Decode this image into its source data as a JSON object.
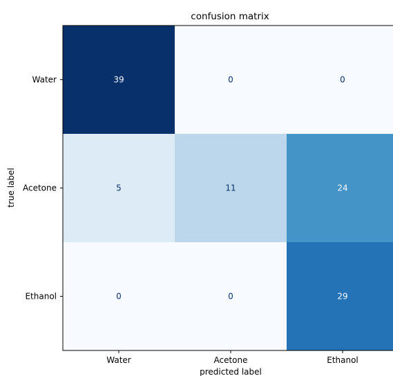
{
  "chart_data": {
    "type": "heatmap",
    "title": "confusion matrix",
    "xlabel": "predicted label",
    "ylabel": "true label",
    "x_categories": [
      "Water",
      "Acetone",
      "Ethanol"
    ],
    "y_categories": [
      "Water",
      "Acetone",
      "Ethanol"
    ],
    "values": [
      [
        39,
        0,
        0
      ],
      [
        5,
        11,
        24
      ],
      [
        0,
        0,
        29
      ]
    ],
    "colormap": "Blues",
    "vmin": 0,
    "vmax": 39,
    "colors": {
      "dark_text": "#08306b",
      "light_text": "#f7fbff"
    }
  }
}
